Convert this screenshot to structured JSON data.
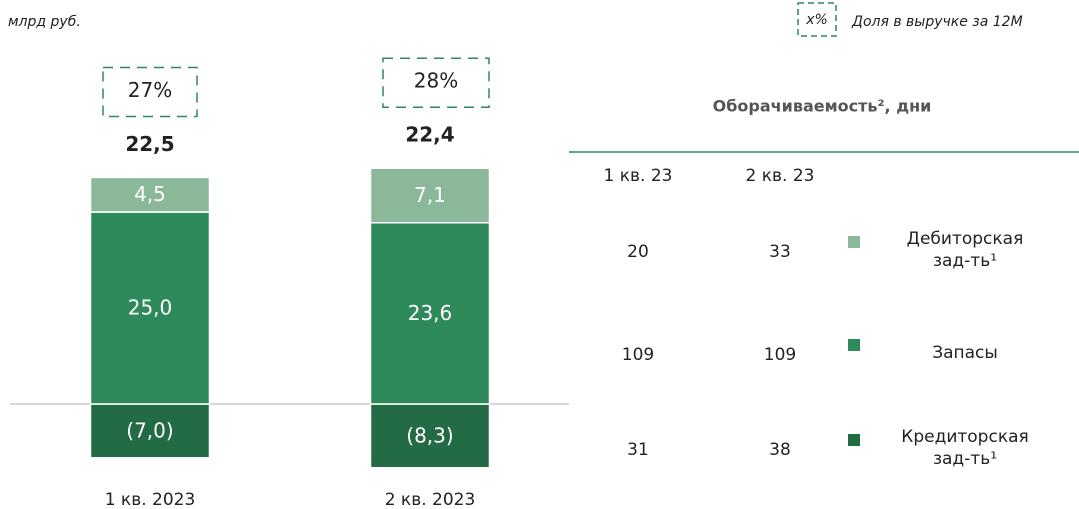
{
  "chart_data": {
    "type": "stacked_bar",
    "unit": "млрд руб.",
    "legend_sample": "x%",
    "legend_text": "Доля в выручке за 12М",
    "categories": [
      "1 кв. 2023",
      "2 кв. 2023"
    ],
    "series": [
      {
        "name": "Дебиторская зад-ть¹",
        "color": "#8cb89a",
        "values": [
          4.5,
          7.1
        ],
        "value_labels": [
          "4,5",
          "7,1"
        ]
      },
      {
        "name": "Запасы",
        "color": "#2e8a5a",
        "values": [
          25.0,
          23.6
        ],
        "value_labels": [
          "25,0",
          "23,6"
        ]
      },
      {
        "name": "Кредиторская зад-ть¹",
        "color": "#236b45",
        "values": [
          -7.0,
          -8.3
        ],
        "value_labels": [
          "(7,0)",
          "(8,3)"
        ]
      }
    ],
    "totals": [
      22.5,
      22.4
    ],
    "total_labels": [
      "22,5",
      "22,4"
    ],
    "shares": [
      27,
      28
    ],
    "share_labels": [
      "27%",
      "28%"
    ],
    "turnover": {
      "title": "Оборачиваемость², дни",
      "columns": [
        "1 кв. 23",
        "2 кв. 23"
      ],
      "rows": [
        [
          20,
          33
        ],
        [
          109,
          109
        ],
        [
          31,
          38
        ]
      ]
    }
  }
}
